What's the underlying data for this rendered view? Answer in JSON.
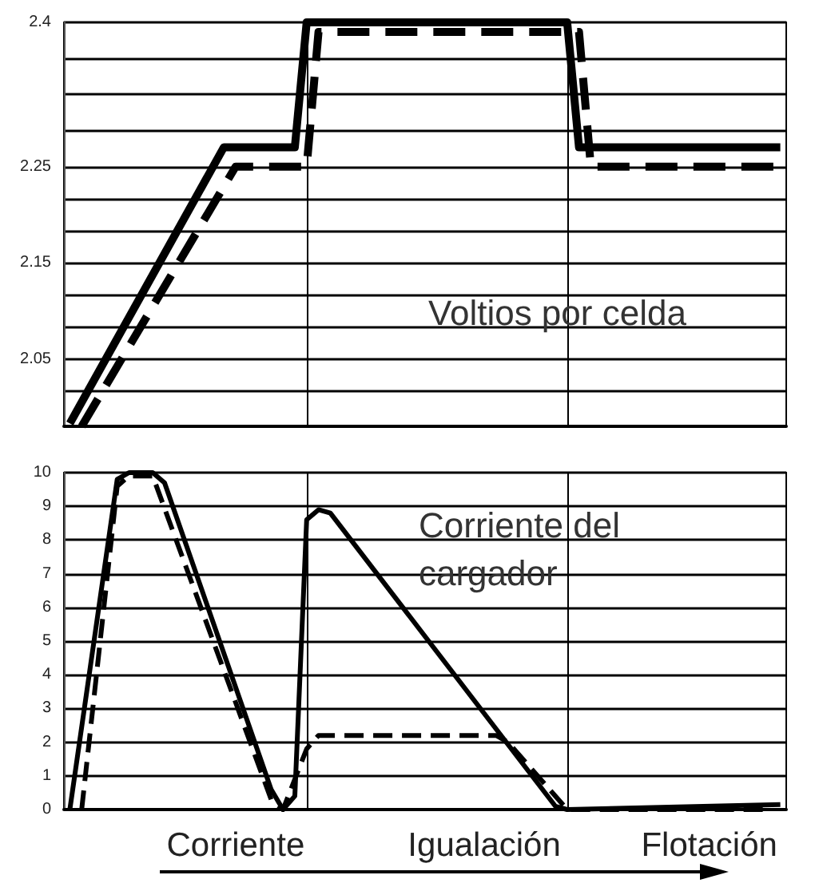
{
  "chart_data": [
    {
      "type": "line",
      "annotations": [
        "Voltios por celda"
      ],
      "categories": [
        null,
        null,
        null,
        null,
        null,
        null,
        null,
        null,
        null,
        null,
        null,
        null,
        null,
        null,
        null,
        null,
        null,
        null,
        null,
        null,
        null,
        null,
        null,
        null,
        null,
        null,
        null,
        null,
        null,
        null,
        null,
        null,
        null,
        null,
        null,
        null,
        null,
        null,
        null,
        null,
        null,
        null,
        null,
        null,
        null,
        null,
        null,
        null,
        null,
        null,
        null,
        null,
        null,
        null,
        null,
        null,
        null,
        null,
        null,
        null,
        null
      ],
      "tick_labels": "y",
      "ylim": [
        1.98,
        2.4
      ],
      "yticks": [
        {
          "value": 2.0167,
          "label": null
        },
        2.05,
        {
          "value": 2.0833,
          "label": null
        },
        {
          "value": 2.1167,
          "label": null
        },
        2.15,
        {
          "value": 2.1833,
          "label": null
        },
        {
          "value": 2.2167,
          "label": null
        },
        2.25,
        {
          "value": 2.2875,
          "label": null
        },
        {
          "value": 2.325,
          "label": null
        },
        {
          "value": 2.3625,
          "label": null
        },
        2.4
      ],
      "grid": "y",
      "marker": "none",
      "series": [
        {
          "color": "#000000",
          "line_style": "solid",
          "values": [
            1.983,
            null,
            null,
            null,
            null,
            null,
            null,
            null,
            null,
            null,
            null,
            null,
            null,
            2.27,
            null,
            null,
            null,
            null,
            null,
            2.27,
            2.4,
            null,
            null,
            null,
            null,
            null,
            null,
            null,
            null,
            null,
            null,
            null,
            null,
            null,
            null,
            null,
            null,
            null,
            null,
            null,
            null,
            null,
            2.4,
            2.27,
            null,
            null,
            null,
            null,
            null,
            null,
            null,
            null,
            null,
            null,
            null,
            null,
            null,
            null,
            null,
            null,
            2.27
          ]
        },
        {
          "color": "#000000",
          "line_style": "dashed",
          "values": [
            null,
            1.98,
            null,
            null,
            null,
            null,
            null,
            null,
            null,
            null,
            null,
            null,
            null,
            null,
            2.25,
            null,
            null,
            null,
            null,
            null,
            2.25,
            2.39,
            null,
            null,
            null,
            null,
            null,
            null,
            null,
            null,
            null,
            null,
            null,
            null,
            null,
            null,
            null,
            null,
            null,
            null,
            null,
            null,
            null,
            2.39,
            2.25,
            null,
            null,
            null,
            null,
            null,
            null,
            null,
            null,
            null,
            null,
            null,
            null,
            null,
            null,
            null,
            2.25
          ]
        }
      ]
    },
    {
      "type": "line",
      "annotations": [
        "Corriente del\ncargador"
      ],
      "categories": [
        null,
        null,
        null,
        null,
        null,
        null,
        null,
        null,
        null,
        null,
        null,
        null,
        null,
        null,
        "Corriente",
        null,
        null,
        null,
        null,
        null,
        null,
        null,
        null,
        null,
        null,
        null,
        null,
        null,
        null,
        null,
        null,
        null,
        null,
        null,
        null,
        "Igualación",
        null,
        null,
        null,
        null,
        null,
        null,
        null,
        null,
        null,
        null,
        null,
        null,
        null,
        null,
        null,
        null,
        null,
        null,
        "Flotación",
        null,
        null,
        null,
        null,
        null,
        null
      ],
      "ylim": [
        0,
        10
      ],
      "yticks": [
        0,
        1,
        2,
        3,
        4,
        5,
        6,
        7,
        8,
        9,
        10
      ],
      "grid": "y",
      "marker": "none",
      "series": [
        {
          "color": "#000000",
          "line_style": "solid",
          "values": [
            0,
            null,
            null,
            null,
            9.8,
            10,
            null,
            10,
            9.7,
            null,
            null,
            null,
            null,
            null,
            null,
            null,
            null,
            0.6,
            0,
            0.4,
            8.6,
            8.9,
            8.8,
            null,
            null,
            null,
            null,
            null,
            null,
            null,
            null,
            null,
            null,
            null,
            null,
            null,
            null,
            null,
            null,
            null,
            null,
            0.1,
            0,
            null,
            null,
            null,
            null,
            null,
            null,
            null,
            null,
            null,
            null,
            null,
            null,
            null,
            null,
            null,
            null,
            null,
            0.15
          ]
        },
        {
          "color": "#000000",
          "line_style": "dashed",
          "values": [
            null,
            0,
            null,
            null,
            9.6,
            9.9,
            null,
            9.9,
            null,
            null,
            null,
            null,
            null,
            null,
            null,
            null,
            null,
            0.3,
            0,
            null,
            1.8,
            2.2,
            null,
            null,
            null,
            null,
            null,
            null,
            null,
            null,
            null,
            null,
            null,
            null,
            null,
            null,
            2.2,
            2.0,
            null,
            null,
            null,
            null,
            0,
            null,
            null,
            null,
            null,
            null,
            null,
            null,
            null,
            null,
            null,
            null,
            null,
            null,
            null,
            null,
            null,
            0,
            null
          ]
        }
      ]
    }
  ]
}
